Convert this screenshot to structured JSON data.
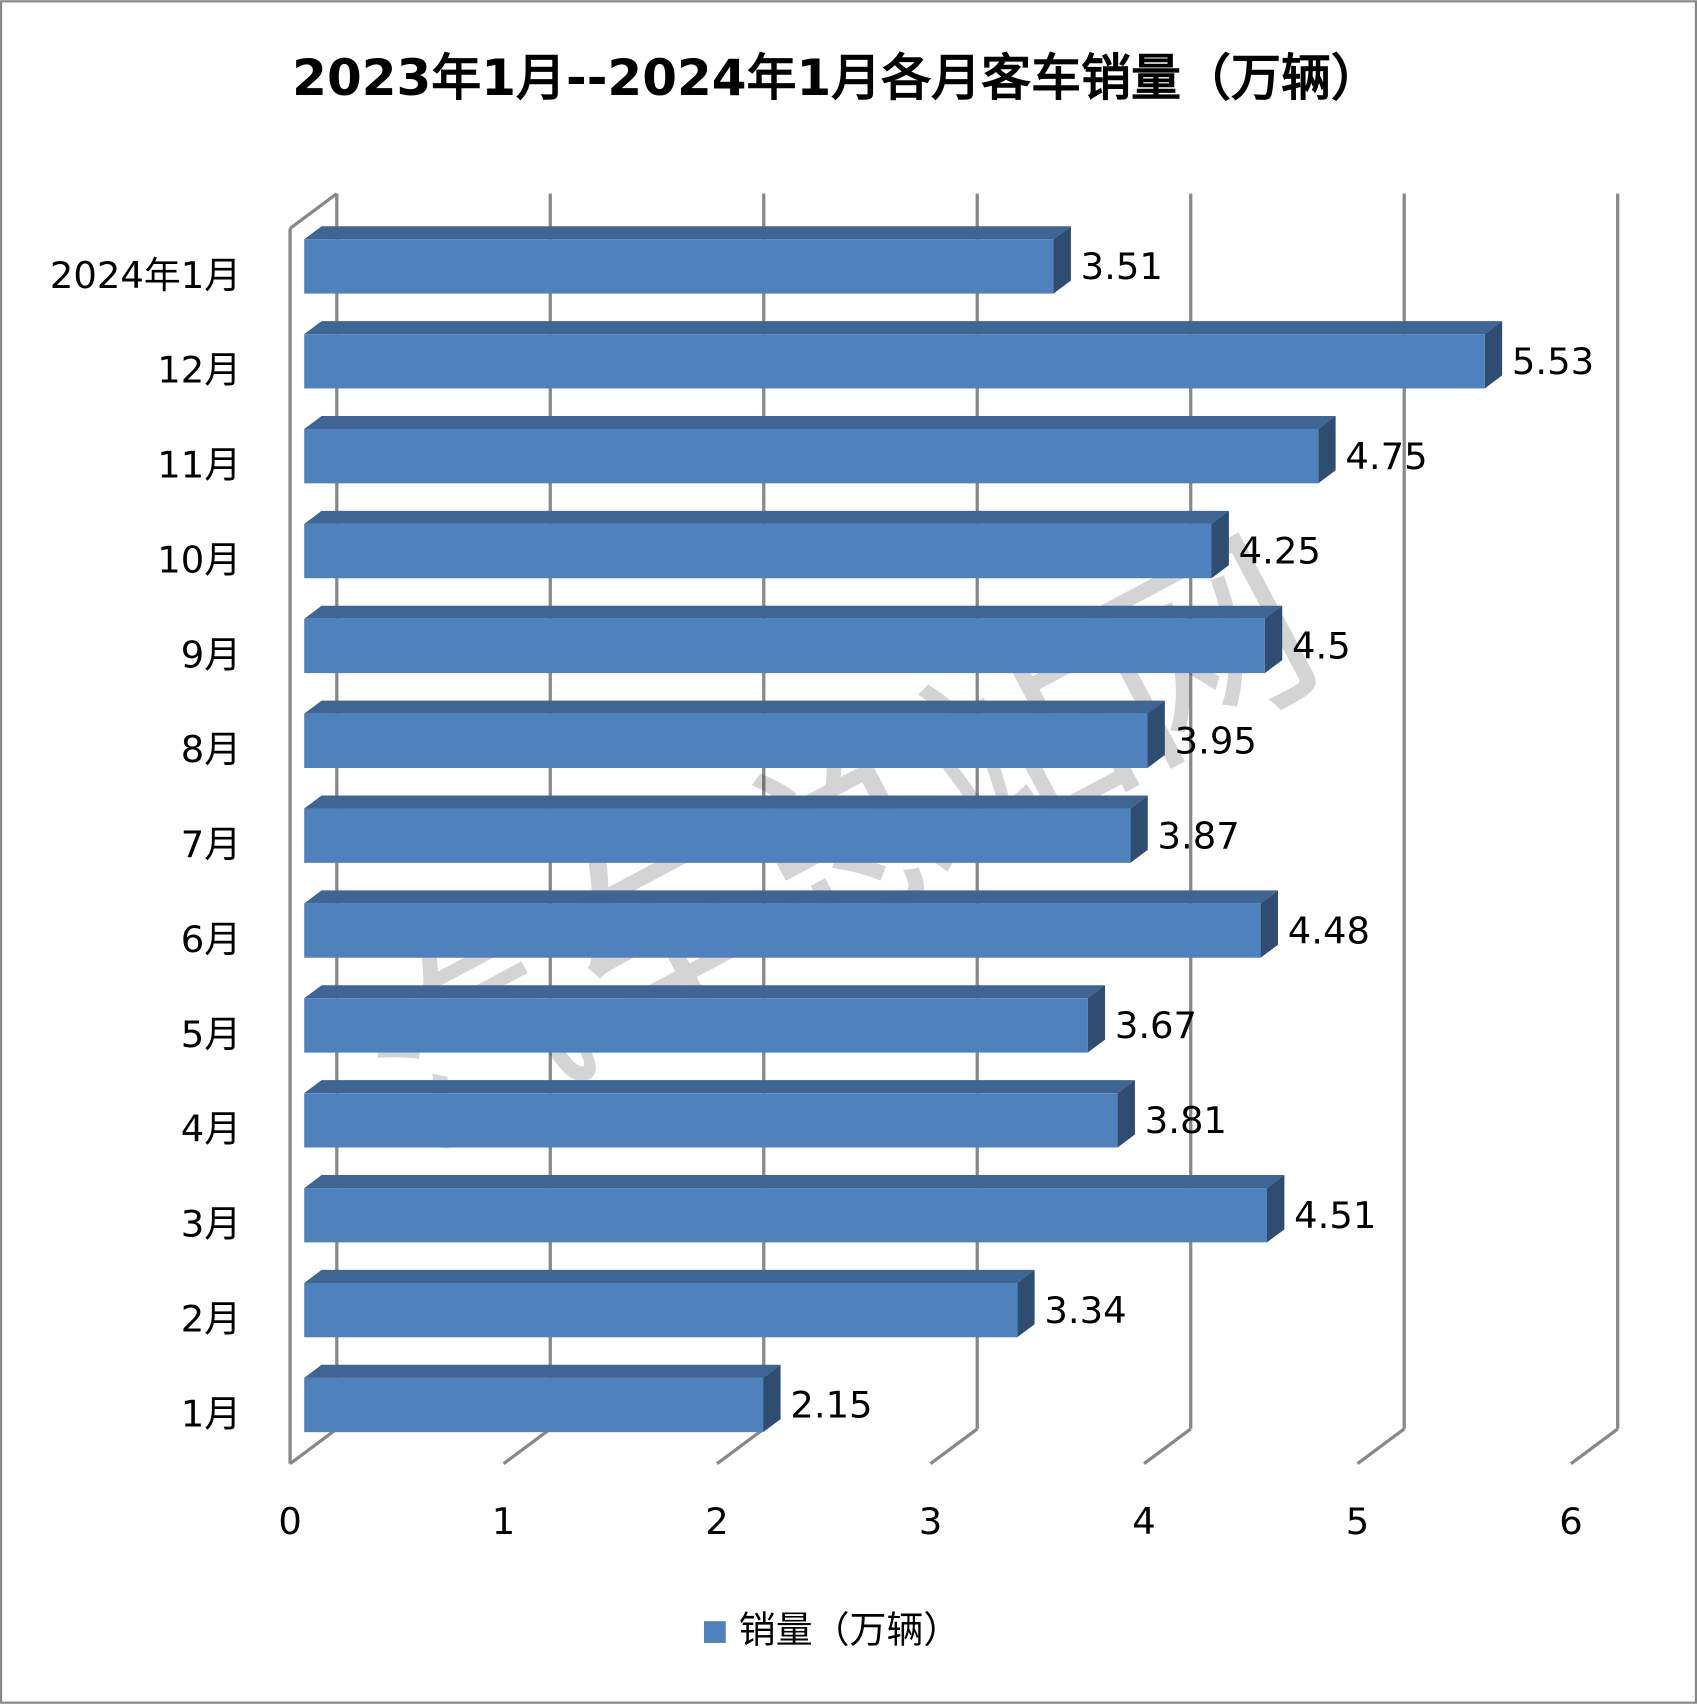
{
  "chart_data": {
    "type": "bar3d_horizontal",
    "title": "2023年1月--2024年1月各月客车销量（万辆）",
    "watermark": "汽车总站网",
    "categories": [
      "1月",
      "2月",
      "3月",
      "4月",
      "5月",
      "6月",
      "7月",
      "8月",
      "9月",
      "10月",
      "11月",
      "12月",
      "2024年1月"
    ],
    "series": [
      {
        "name": "销量（万辆）",
        "color": "#4f81bd",
        "values": [
          2.15,
          3.34,
          4.51,
          3.81,
          3.67,
          4.48,
          3.87,
          3.95,
          4.5,
          4.25,
          4.75,
          5.53,
          3.51
        ]
      }
    ],
    "xlim": [
      0,
      6
    ],
    "xticks": [
      0,
      1,
      2,
      3,
      4,
      5,
      6
    ],
    "grid": true,
    "legend": "bottom"
  }
}
